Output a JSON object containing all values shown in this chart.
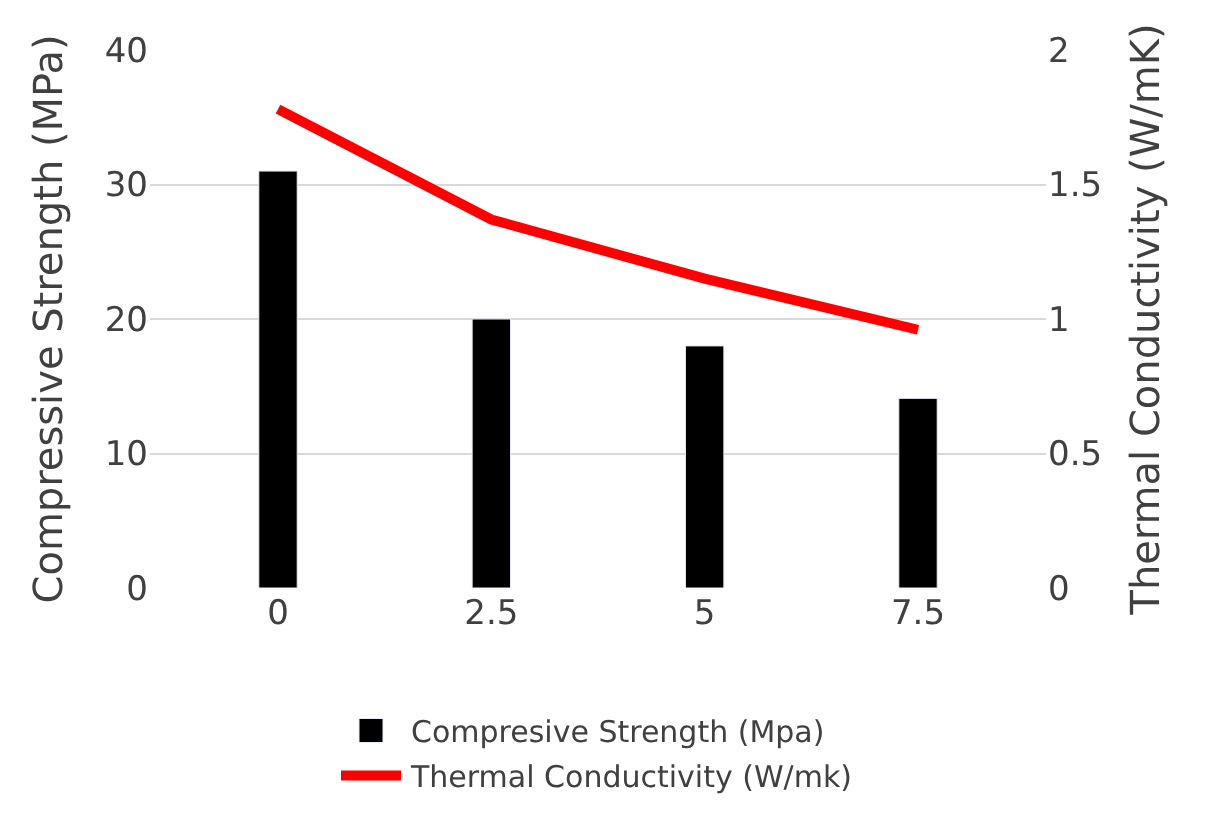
{
  "chart_data": {
    "type": "bar",
    "categories": [
      "0",
      "2.5",
      "5",
      "7.5"
    ],
    "ylabel": "Compressive Strength (MPa)",
    "y2label": "Thermal Conductivity (W/mK)",
    "series": [
      {
        "name": "Compresive Strength (Mpa)",
        "color": "#000000",
        "values": [
          31,
          20,
          18,
          14.1
        ]
      },
      {
        "name": "Thermal Conductivity (W/mk)",
        "color": "#ff0000",
        "type": "line",
        "axis": "y2",
        "values": [
          1.78,
          1.37,
          1.15,
          0.96
        ]
      }
    ],
    "ylim": [
      0,
      40
    ],
    "yticks": [
      0,
      10,
      20,
      30,
      40
    ],
    "y2lim": [
      0,
      2
    ],
    "y2ticks": [
      0,
      0.5,
      1,
      1.5,
      2
    ],
    "grid": "y",
    "legend": "bottom",
    "marker": "none",
    "line_style": "solid"
  }
}
